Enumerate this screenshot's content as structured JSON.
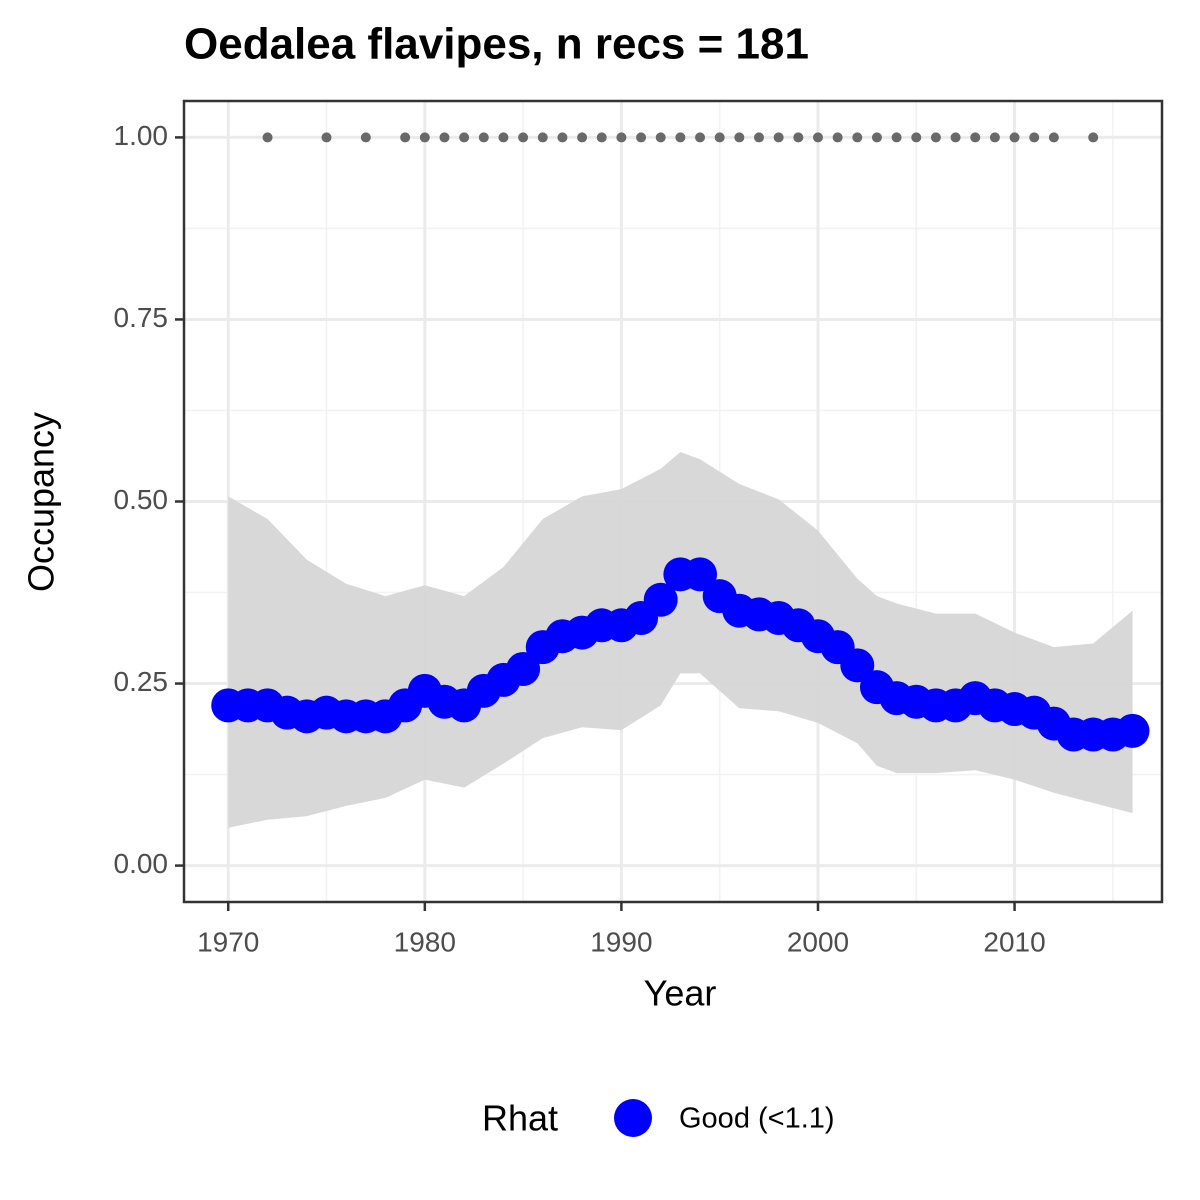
{
  "chart_data": {
    "type": "line",
    "title": "Oedalea flavipes, n recs = 181",
    "x_label": "Year",
    "y_label": "Occupancy",
    "xlim": [
      1967.75,
      2017.5
    ],
    "ylim": [
      -0.05,
      1.05
    ],
    "xticks": [
      1970,
      1980,
      1990,
      2000,
      2010
    ],
    "x_minor_ticks": [
      1975,
      1985,
      1995,
      2005,
      2015
    ],
    "yticks": [
      {
        "value": 0,
        "label": "0.00"
      },
      0.25,
      {
        "value": 0.5,
        "label": "0.50"
      },
      0.75,
      {
        "value": 1,
        "label": "1.00"
      }
    ],
    "y_minor_ticks": [
      0.125,
      0.375,
      0.625,
      0.875
    ],
    "grid": true,
    "legend_position": "bottom",
    "legend_title": "Rhat",
    "x": [
      1970,
      1971,
      1972,
      1973,
      1974,
      1975,
      1976,
      1977,
      1978,
      1979,
      1980,
      1981,
      1982,
      1983,
      1984,
      1985,
      1986,
      1987,
      1988,
      1989,
      1990,
      1991,
      1992,
      1993,
      1994,
      1995,
      1996,
      1997,
      1998,
      1999,
      2000,
      2001,
      2002,
      2003,
      2004,
      2005,
      2006,
      2007,
      2008,
      2009,
      2010,
      2011,
      2012,
      2013,
      2014,
      2015,
      2016
    ],
    "series": [
      {
        "name": "Good (<1.1)",
        "color": "#0000ff",
        "values": [
          0.22,
          0.22,
          0.22,
          0.21,
          0.205,
          0.21,
          0.205,
          0.205,
          0.205,
          0.22,
          0.24,
          0.225,
          0.22,
          0.24,
          0.255,
          0.27,
          0.3,
          0.315,
          0.32,
          0.33,
          0.33,
          0.34,
          0.365,
          0.4,
          0.4,
          0.37,
          0.35,
          0.345,
          0.34,
          0.33,
          0.315,
          0.3,
          0.275,
          0.245,
          0.23,
          0.225,
          0.22,
          0.22,
          0.23,
          0.22,
          0.215,
          0.21,
          0.195,
          0.18,
          0.18,
          0.18,
          0.185
        ]
      }
    ],
    "band": {
      "color": "#d6d6d6",
      "x": [
        1970,
        1972,
        1974,
        1976,
        1978,
        1980,
        1982,
        1984,
        1986,
        1988,
        1990,
        1992,
        1993,
        1994,
        1996,
        1998,
        2000,
        2002,
        2003,
        2004,
        2006,
        2008,
        2010,
        2012,
        2014,
        2016
      ],
      "upper": [
        0.507,
        0.476,
        0.42,
        0.387,
        0.37,
        0.385,
        0.37,
        0.41,
        0.476,
        0.507,
        0.517,
        0.545,
        0.568,
        0.558,
        0.524,
        0.503,
        0.46,
        0.394,
        0.37,
        0.36,
        0.346,
        0.346,
        0.32,
        0.3,
        0.305,
        0.35
      ],
      "lower": [
        0.052,
        0.063,
        0.068,
        0.082,
        0.093,
        0.118,
        0.107,
        0.14,
        0.175,
        0.19,
        0.186,
        0.22,
        0.264,
        0.264,
        0.216,
        0.212,
        0.196,
        0.168,
        0.137,
        0.127,
        0.127,
        0.131,
        0.118,
        0.1,
        0.086,
        0.072
      ]
    },
    "records": {
      "color": "#696969",
      "x": [
        1972,
        1975,
        1977,
        1979,
        1980,
        1981,
        1982,
        1983,
        1984,
        1985,
        1986,
        1987,
        1988,
        1989,
        1990,
        1991,
        1992,
        1993,
        1994,
        1995,
        1996,
        1997,
        1998,
        1999,
        2000,
        2001,
        2002,
        2003,
        2004,
        2005,
        2006,
        2007,
        2008,
        2009,
        2010,
        2011,
        2012,
        2014
      ],
      "values": [
        1,
        1,
        1,
        1,
        1,
        1,
        1,
        1,
        1,
        1,
        1,
        1,
        1,
        1,
        1,
        1,
        1,
        1,
        1,
        1,
        1,
        1,
        1,
        1,
        1,
        1,
        1,
        1,
        1,
        1,
        1,
        1,
        1,
        1,
        1,
        1,
        1,
        1
      ]
    }
  }
}
